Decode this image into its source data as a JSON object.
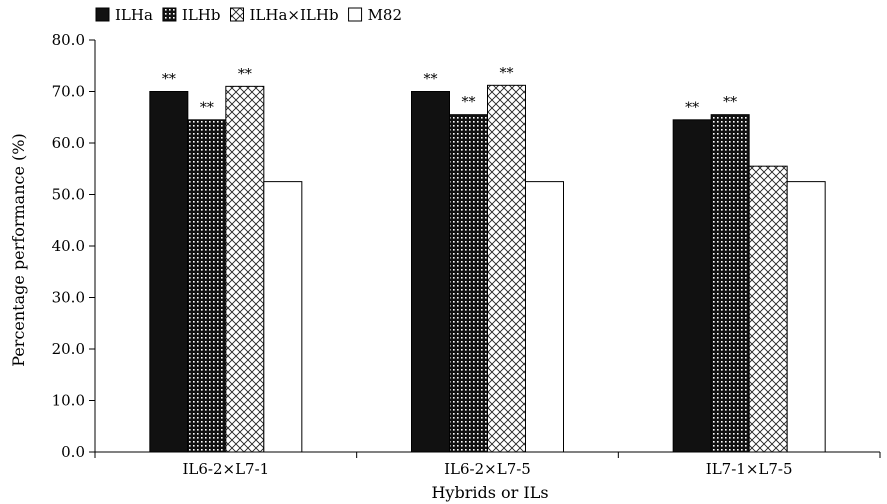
{
  "chart_data": {
    "type": "bar",
    "categories": [
      "IL6-2×L7-1",
      "IL6-2×L7-5",
      "IL7-1×L7-5"
    ],
    "series": [
      {
        "name": "ILHa",
        "values": [
          70.0,
          70.0,
          64.5
        ],
        "pattern": "solid",
        "annotations": [
          "**",
          "**",
          "**"
        ]
      },
      {
        "name": "ILHb",
        "values": [
          64.5,
          65.5,
          65.5
        ],
        "pattern": "dots",
        "annotations": [
          "**",
          "**",
          "**"
        ]
      },
      {
        "name": "ILHa×ILHb",
        "values": [
          71.0,
          71.2,
          55.5
        ],
        "pattern": "crosshatch",
        "annotations": [
          "**",
          "**",
          ""
        ]
      },
      {
        "name": "M82",
        "values": [
          52.5,
          52.5,
          52.5
        ],
        "pattern": "white",
        "annotations": [
          "",
          "",
          ""
        ]
      }
    ],
    "xlabel": "Hybrids or ILs",
    "ylabel": "Percentage performance (%)",
    "ylim": [
      0,
      80
    ],
    "yticks": [
      "0.0",
      "10.0",
      "20.0",
      "30.0",
      "40.0",
      "50.0",
      "60.0",
      "70.0",
      "80.0"
    ],
    "grid": false,
    "legend_position": "top-left",
    "colors": {
      "bar_fill": "#111111",
      "bar_stroke": "#000000",
      "background": "#ffffff"
    }
  }
}
